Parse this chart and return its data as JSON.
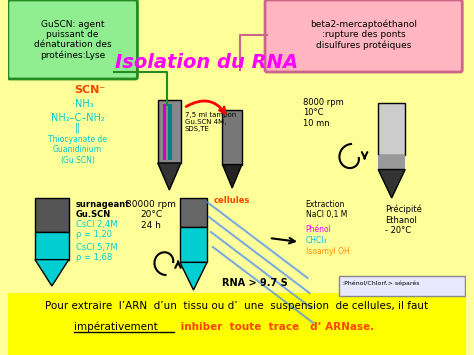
{
  "bg_color": "#FFFF99",
  "title": "Isolation du RNA",
  "title_color": "#FF00FF",
  "title_fontsize": 14,
  "box1_text": "GuSCN: agent\npuissant de\ndénaturation des\nprotéines:Lyse",
  "box1_color": "#90EE90",
  "box1_edgecolor": "#228B22",
  "box2_text": "beta2-mercaptoéthanol\n:rupture des ponts\ndisulfures protéiques",
  "box2_color": "#FFB6C1",
  "box2_edgecolor": "#CC6688",
  "label_75ml": "7,5 ml tampon\nGu.SCN 4M,\nSDS,TE",
  "label_cellules": "cellules",
  "label_8000rpm": "8000 rpm\n10°C\n10 mn",
  "label_3000rpm": "30000 rpm\n20°C\n24 h",
  "label_rna": "RNA > 9.7 S",
  "label_precipite": "Précipité\nEthanol\n- 20°C",
  "bottom_text1": "Pour extraire  l’ARN  d’un  tissu ou d’  une  suspension  de cellules, il faut",
  "bottom_text2_normal": "impérativement",
  "bottom_text2_colored": " inhiber  toute  trace   d’ ARNase.",
  "cyan_color": "#00CED1",
  "teal_color": "#008080",
  "red_color": "#FF0000",
  "magenta_color": "#FF00FF",
  "orange_color": "#FF8C00"
}
